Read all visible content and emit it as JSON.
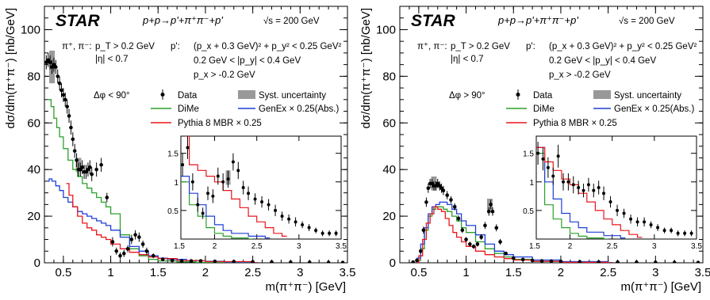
{
  "panels": [
    {
      "id": "left",
      "star": "STAR",
      "process": "p+p→p'+π⁺π⁻+p'",
      "energy": "√s = 200 GeV",
      "cuts": {
        "pion_label": "π⁺, π⁻:",
        "pion_pt": "p_T > 0.2 GeV",
        "pion_eta": "|η| < 0.7",
        "proton_label": "p':",
        "proton_1": "(p_x + 0.3 GeV)² + p_y² < 0.25 GeV²",
        "proton_2": "0.2 GeV < |p_y| < 0.4 GeV",
        "proton_3": "p_x > -0.2 GeV"
      },
      "dphi": "Δφ < 90°",
      "legend": [
        "Data",
        "Syst. uncertainty",
        "DiMe",
        "GenEx × 0.25(Abs.)",
        "Pythia 8 MBR × 0.25"
      ],
      "xlabel": "m(π⁺π⁻) [GeV]",
      "ylabel": "dσ/dm(π⁺π⁻) [nb/GeV]"
    },
    {
      "id": "right",
      "star": "STAR",
      "process": "p+p→p'+π⁺π⁻+p'",
      "energy": "√s = 200 GeV",
      "cuts": {
        "pion_label": "π⁺, π⁻:",
        "pion_pt": "p_T > 0.2 GeV",
        "pion_eta": "|η| < 0.7",
        "proton_label": "p':",
        "proton_1": "(p_x + 0.3 GeV)² + p_y² < 0.25 GeV²",
        "proton_2": "0.2 GeV < |p_y| < 0.4 GeV",
        "proton_3": "p_x > -0.2 GeV"
      },
      "dphi": "Δφ > 90°",
      "legend": [
        "Data",
        "Syst. uncertainty",
        "DiMe",
        "GenEx × 0.25(Abs.)",
        "Pythia 8 MBR × 0.25"
      ],
      "xlabel": "m(π⁺π⁻) [GeV]",
      "ylabel": "dσ/dm(π⁺π⁻) [nb/GeV]"
    }
  ],
  "chart_data": [
    {
      "type": "scatter",
      "panel": "left",
      "xlim": [
        0.3,
        3.5
      ],
      "ylim": [
        0,
        110
      ],
      "xticks": [
        0.5,
        1,
        1.5,
        2,
        2.5,
        3,
        3.5
      ],
      "yticks": [
        0,
        20,
        40,
        60,
        80,
        100
      ],
      "colors": {
        "data": "#000000",
        "dime": "#2ca02c",
        "genex": "#1f3fd6",
        "pythia": "#e8161b",
        "syst": "#999999"
      },
      "series": [
        {
          "name": "Data",
          "x": [
            0.32,
            0.34,
            0.36,
            0.38,
            0.4,
            0.42,
            0.44,
            0.46,
            0.48,
            0.5,
            0.52,
            0.54,
            0.56,
            0.58,
            0.6,
            0.62,
            0.64,
            0.66,
            0.68,
            0.7,
            0.72,
            0.74,
            0.76,
            0.78,
            0.8,
            0.85,
            0.9,
            0.96,
            1.02,
            1.06,
            1.1,
            1.14,
            1.18,
            1.22,
            1.26,
            1.3,
            1.34,
            1.38,
            1.45,
            1.55,
            1.65,
            1.75,
            1.85,
            1.95,
            2.1,
            2.3,
            2.5,
            2.7,
            2.9,
            3.1,
            3.3,
            3.45
          ],
          "y": [
            86,
            87,
            86,
            84,
            85,
            84,
            80,
            77,
            74,
            72,
            70,
            67,
            63,
            58,
            53,
            48,
            44,
            40,
            40,
            41,
            39,
            39,
            40,
            41,
            38,
            40,
            42,
            28,
            9,
            5,
            3,
            4,
            6,
            10,
            12,
            11,
            8,
            5,
            3,
            1.5,
            1,
            0.8,
            0.8,
            0.8,
            0.6,
            0.5,
            0.4,
            0.3,
            0.2,
            0.15,
            0.1,
            0.1
          ],
          "err": [
            3,
            3,
            3,
            3,
            3,
            3,
            3,
            3,
            3,
            3,
            3,
            3,
            3,
            3,
            3,
            3,
            3,
            3,
            3,
            3,
            3,
            3,
            3,
            3,
            3,
            3,
            3,
            2,
            2,
            1.5,
            1.5,
            1.5,
            1.5,
            2,
            2,
            2,
            1.5,
            1.5,
            1,
            0.8,
            0.6,
            0.5,
            0.5,
            0.5,
            0.4,
            0.4,
            0.3,
            0.3,
            0.2,
            0.2,
            0.2,
            0.2
          ]
        },
        {
          "name": "Syst. uncertainty",
          "x": [
            0.38,
            0.66
          ],
          "y": [
            84,
            42
          ],
          "err": [
            7,
            3
          ]
        },
        {
          "name": "DiMe",
          "x": [
            0.33,
            0.35,
            0.37,
            0.4,
            0.43,
            0.46,
            0.5,
            0.55,
            0.6,
            0.65,
            0.7,
            0.75,
            0.8,
            0.85,
            0.9,
            0.95,
            1.0,
            1.1,
            1.2,
            1.3,
            1.4,
            1.5,
            1.7,
            1.9,
            2.2,
            2.5
          ],
          "y": [
            70,
            70,
            67,
            62,
            58,
            54,
            49,
            44,
            40,
            37,
            34,
            32,
            30,
            28,
            26,
            24,
            21,
            12,
            6,
            3,
            1.5,
            0.8,
            0.4,
            0.2,
            0.1,
            0
          ]
        },
        {
          "name": "GenEx × 0.25(Abs.)",
          "x": [
            0.33,
            0.35,
            0.38,
            0.42,
            0.46,
            0.5,
            0.55,
            0.6,
            0.65,
            0.7,
            0.75,
            0.8,
            0.85,
            0.9,
            0.95,
            1.0,
            1.1,
            1.2,
            1.3,
            1.4,
            1.5,
            1.6,
            1.8,
            2.0,
            2.2,
            2.5
          ],
          "y": [
            35,
            36,
            35,
            33,
            31,
            28,
            26,
            24,
            22,
            21,
            20,
            19,
            18,
            17,
            16,
            14,
            11,
            7,
            5,
            3,
            2,
            1.5,
            1,
            0.6,
            0.3,
            0.1
          ]
        },
        {
          "name": "Pythia 8 MBR × 0.25",
          "x": [
            0.53,
            0.56,
            0.6,
            0.65,
            0.7,
            0.75,
            0.8,
            0.85,
            0.9,
            0.95,
            1.0,
            1.1,
            1.2,
            1.3,
            1.4,
            1.5,
            1.7,
            2.0,
            2.5
          ],
          "y": [
            34,
            29,
            24,
            20,
            17,
            15,
            14,
            12,
            11,
            10,
            8,
            6,
            4.5,
            3.5,
            2.5,
            1.8,
            1,
            0.5,
            0.1
          ]
        }
      ],
      "inset": {
        "xlim": [
          1.6,
          3.5
        ],
        "ylim": [
          0,
          1.8
        ],
        "xticks": [
          1.5,
          2,
          2.5,
          3,
          3.5
        ],
        "yticks": [
          0.5,
          1,
          1.5
        ],
        "data": {
          "x": [
            1.62,
            1.68,
            1.74,
            1.8,
            1.86,
            1.92,
            1.98,
            2.04,
            2.1,
            2.16,
            2.22,
            2.28,
            2.34,
            2.4,
            2.48,
            2.56,
            2.64,
            2.72,
            2.8,
            2.88,
            2.96,
            3.04,
            3.12,
            3.2,
            3.28,
            3.36,
            3.44
          ],
          "y": [
            1.3,
            1.6,
            1.0,
            0.6,
            0.45,
            0.8,
            0.75,
            1.1,
            1.0,
            1.05,
            1.35,
            1.2,
            0.9,
            0.8,
            0.7,
            0.65,
            0.6,
            0.5,
            0.4,
            0.35,
            0.3,
            0.25,
            0.2,
            0.15,
            0.1,
            0.1,
            0.1
          ],
          "err": [
            0.2,
            0.2,
            0.15,
            0.12,
            0.1,
            0.12,
            0.12,
            0.15,
            0.15,
            0.15,
            0.15,
            0.15,
            0.12,
            0.12,
            0.1,
            0.1,
            0.1,
            0.1,
            0.08,
            0.08,
            0.08,
            0.06,
            0.06,
            0.05,
            0.05,
            0.05,
            0.05
          ]
        },
        "dime": {
          "x": [
            1.6,
            1.7,
            1.8,
            1.9,
            2.0,
            2.1,
            2.2,
            2.4
          ],
          "y": [
            1.0,
            0.6,
            0.4,
            0.2,
            0.1,
            0.05,
            0.02,
            0
          ]
        },
        "genex": {
          "x": [
            1.6,
            1.7,
            1.8,
            1.9,
            2.0,
            2.1,
            2.2,
            2.4,
            2.6
          ],
          "y": [
            1.1,
            0.8,
            0.6,
            0.4,
            0.25,
            0.15,
            0.1,
            0.05,
            0.02
          ]
        },
        "pythia": {
          "x": [
            1.65,
            1.7,
            1.8,
            1.9,
            2.0,
            2.1,
            2.2,
            2.3,
            2.4,
            2.5,
            2.6,
            2.7,
            2.8
          ],
          "y": [
            1.8,
            1.3,
            1.2,
            1.1,
            1.0,
            0.85,
            0.7,
            0.55,
            0.4,
            0.3,
            0.2,
            0.1,
            0.05
          ]
        }
      }
    },
    {
      "type": "scatter",
      "panel": "right",
      "xlim": [
        0.3,
        3.5
      ],
      "ylim": [
        0,
        110
      ],
      "xticks": [
        0.5,
        1,
        1.5,
        2,
        2.5,
        3,
        3.5
      ],
      "yticks": [
        0,
        20,
        40,
        60,
        80,
        100
      ],
      "colors": {
        "data": "#000000",
        "dime": "#2ca02c",
        "genex": "#1f3fd6",
        "pythia": "#e8161b",
        "syst": "#999999"
      },
      "series": [
        {
          "name": "Data",
          "x": [
            0.44,
            0.48,
            0.52,
            0.55,
            0.58,
            0.6,
            0.62,
            0.64,
            0.66,
            0.68,
            0.7,
            0.72,
            0.74,
            0.76,
            0.8,
            0.84,
            0.88,
            0.92,
            0.96,
            1.0,
            1.04,
            1.08,
            1.12,
            1.16,
            1.2,
            1.24,
            1.26,
            1.28,
            1.32,
            1.36,
            1.42,
            1.5,
            1.6,
            1.7,
            1.8,
            1.9,
            2.0,
            2.2,
            2.4,
            2.6,
            2.8,
            3.0,
            3.2,
            3.45
          ],
          "y": [
            0.3,
            1,
            5,
            14,
            26,
            32,
            34,
            34,
            33,
            33,
            34,
            33,
            32,
            31,
            29,
            27,
            24,
            19,
            14,
            10,
            8,
            7,
            8,
            11,
            16,
            22,
            25,
            22,
            15,
            9,
            4,
            2,
            1.4,
            1,
            0.8,
            0.7,
            0.6,
            0.4,
            0.3,
            0.25,
            0.2,
            0.15,
            0.1,
            0.1
          ],
          "err": [
            0.2,
            0.5,
            1,
            1.5,
            2,
            2,
            2,
            2,
            2,
            2,
            2,
            2,
            2,
            2,
            1.8,
            1.6,
            1.5,
            1.3,
            1.2,
            1,
            1,
            1,
            1,
            1.2,
            1.5,
            1.8,
            2,
            1.8,
            1.5,
            1.2,
            0.8,
            0.5,
            0.4,
            0.3,
            0.3,
            0.3,
            0.3,
            0.2,
            0.2,
            0.2,
            0.15,
            0.15,
            0.1,
            0.1
          ]
        },
        {
          "name": "Syst. uncertainty",
          "x": [
            0.66,
            1.25
          ],
          "y": [
            34,
            25
          ],
          "err": [
            3,
            2.5
          ]
        },
        {
          "name": "DiMe",
          "x": [
            0.44,
            0.48,
            0.52,
            0.56,
            0.6,
            0.64,
            0.68,
            0.72,
            0.76,
            0.8,
            0.85,
            0.9,
            0.95,
            1.0,
            1.1,
            1.2,
            1.3,
            1.4,
            1.5,
            1.7,
            2.0,
            2.5
          ],
          "y": [
            0,
            1,
            6,
            14,
            20,
            23,
            24,
            24,
            23,
            22,
            20,
            18,
            15,
            13,
            9,
            6,
            4,
            2.5,
            1.5,
            0.6,
            0.2,
            0
          ]
        },
        {
          "name": "GenEx × 0.25(Abs.)",
          "x": [
            0.44,
            0.48,
            0.52,
            0.56,
            0.6,
            0.64,
            0.68,
            0.72,
            0.76,
            0.8,
            0.85,
            0.9,
            0.95,
            1.0,
            1.1,
            1.2,
            1.3,
            1.4,
            1.5,
            1.7,
            2.0,
            2.5
          ],
          "y": [
            0,
            2,
            8,
            15,
            21,
            24,
            25,
            26,
            26,
            25,
            23,
            21,
            18,
            16,
            12,
            8,
            5,
            3.5,
            2.5,
            1.2,
            0.5,
            0.1
          ]
        },
        {
          "name": "Pythia 8 MBR × 0.25",
          "x": [
            0.46,
            0.5,
            0.54,
            0.58,
            0.62,
            0.66,
            0.7,
            0.74,
            0.78,
            0.82,
            0.86,
            0.9,
            0.95,
            1.0,
            1.1,
            1.2,
            1.3,
            1.4,
            1.5,
            1.7,
            2.0,
            2.5
          ],
          "y": [
            0,
            3,
            10,
            17,
            21,
            24,
            23,
            22,
            19,
            16,
            13,
            11,
            9,
            7,
            5,
            3.5,
            2.5,
            1.8,
            1.2,
            0.6,
            0.2,
            0
          ]
        }
      ],
      "inset": {
        "xlim": [
          1.6,
          3.5
        ],
        "ylim": [
          0,
          1.8
        ],
        "xticks": [
          1.5,
          2,
          2.5,
          3,
          3.5
        ],
        "yticks": [
          0.5,
          1,
          1.5
        ],
        "data": {
          "x": [
            1.62,
            1.68,
            1.74,
            1.8,
            1.86,
            1.92,
            1.98,
            2.04,
            2.1,
            2.16,
            2.22,
            2.28,
            2.34,
            2.4,
            2.48,
            2.56,
            2.64,
            2.72,
            2.8,
            2.88,
            2.96,
            3.04,
            3.12,
            3.2,
            3.28,
            3.36,
            3.44
          ],
          "y": [
            1.5,
            1.4,
            1.25,
            1.1,
            1.45,
            1.0,
            1.0,
            0.95,
            0.9,
            0.85,
            0.95,
            0.85,
            0.9,
            0.8,
            0.65,
            0.5,
            0.45,
            0.35,
            0.3,
            0.3,
            0.25,
            0.2,
            0.15,
            0.15,
            0.1,
            0.1,
            0.1
          ],
          "err": [
            0.2,
            0.2,
            0.18,
            0.15,
            0.2,
            0.15,
            0.15,
            0.15,
            0.12,
            0.12,
            0.12,
            0.12,
            0.12,
            0.12,
            0.1,
            0.1,
            0.08,
            0.08,
            0.08,
            0.08,
            0.06,
            0.06,
            0.05,
            0.05,
            0.05,
            0.05,
            0.05
          ]
        },
        "dime": {
          "x": [
            1.6,
            1.7,
            1.8,
            1.9,
            2.0,
            2.1,
            2.2,
            2.4
          ],
          "y": [
            1.5,
            0.6,
            0.35,
            0.2,
            0.1,
            0.05,
            0.02,
            0
          ]
        },
        "genex": {
          "x": [
            1.6,
            1.7,
            1.8,
            1.9,
            2.0,
            2.1,
            2.2,
            2.4,
            2.6
          ],
          "y": [
            1.6,
            1.0,
            0.7,
            0.45,
            0.3,
            0.2,
            0.12,
            0.06,
            0.02
          ]
        },
        "pythia": {
          "x": [
            1.6,
            1.7,
            1.8,
            1.9,
            2.0,
            2.1,
            2.2,
            2.3,
            2.4,
            2.5,
            2.6,
            2.7,
            2.8
          ],
          "y": [
            1.6,
            1.35,
            1.2,
            1.05,
            0.95,
            0.8,
            0.65,
            0.5,
            0.35,
            0.25,
            0.15,
            0.08,
            0.03
          ]
        }
      }
    }
  ]
}
